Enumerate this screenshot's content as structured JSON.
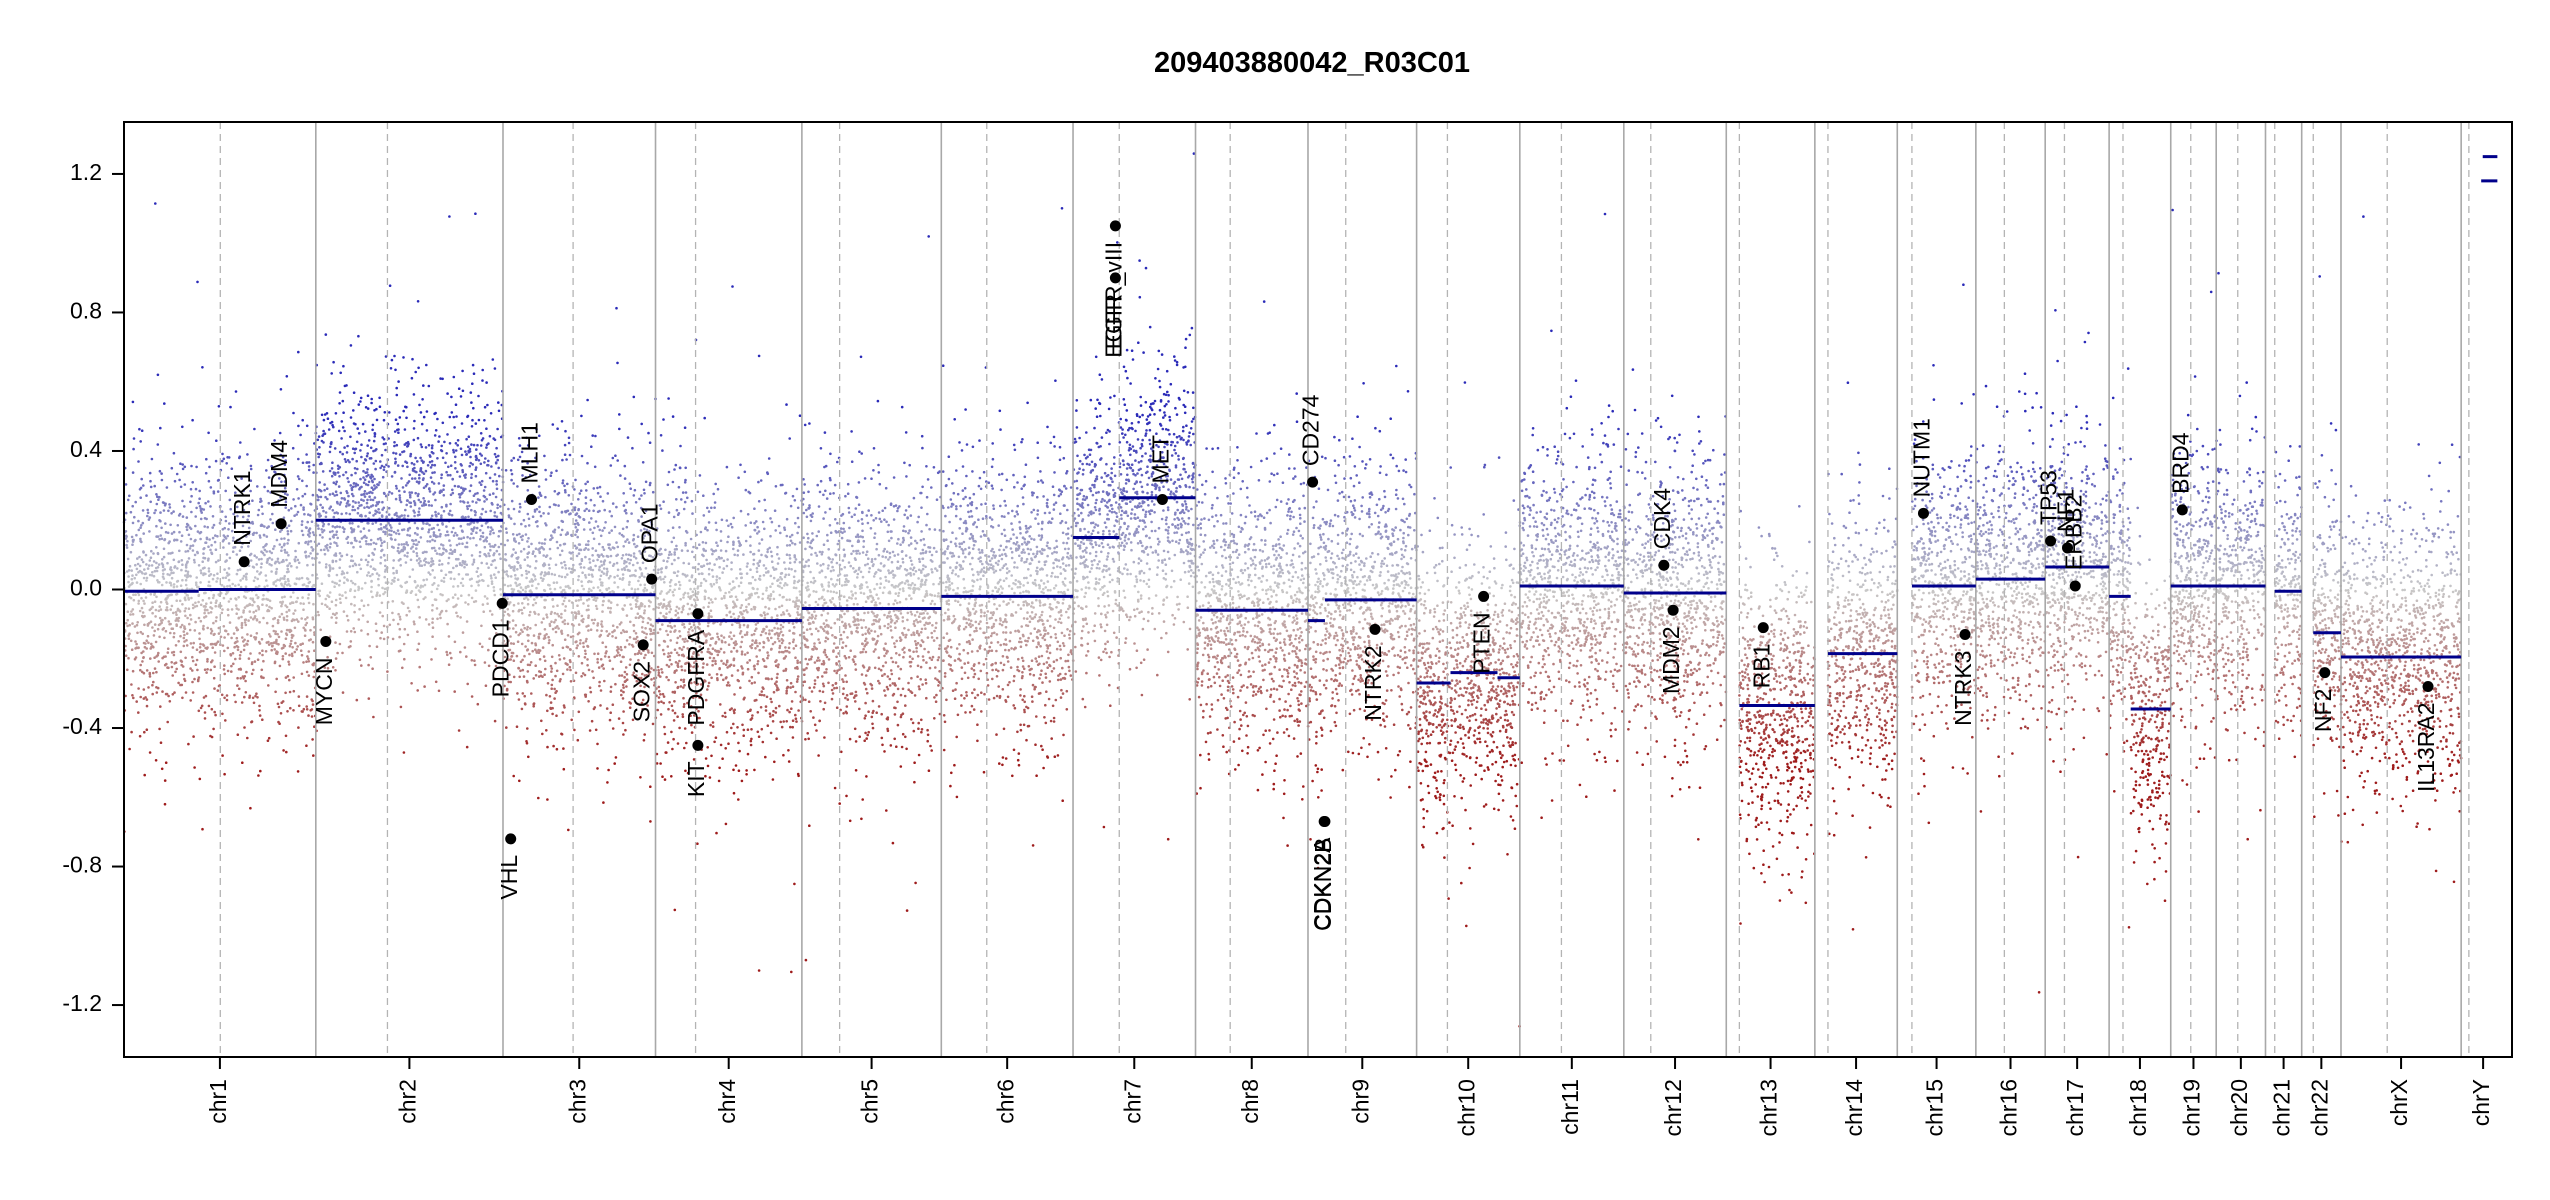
{
  "chart_data": {
    "type": "scatter",
    "title": "209403880042_R03C01",
    "xlabel": "",
    "ylabel": "",
    "ylim": [
      -1.35,
      1.35
    ],
    "y_ticks": [
      1.2,
      0.8,
      0.4,
      0.0,
      -0.4,
      -0.8,
      -1.2
    ],
    "y_tick_labels": [
      "1.2",
      "0.8",
      "0.4",
      "0.0",
      "-0.4",
      "-0.8",
      "-1.2"
    ],
    "x_range_mb": [
      0,
      3100
    ],
    "chromosomes": [
      {
        "name": "chr1",
        "start": 0,
        "end": 249,
        "centromere": 125
      },
      {
        "name": "chr2",
        "start": 249,
        "end": 492,
        "centromere": 342
      },
      {
        "name": "chr3",
        "start": 492,
        "end": 690,
        "centromere": 583
      },
      {
        "name": "chr4",
        "start": 690,
        "end": 880,
        "centromere": 742
      },
      {
        "name": "chr5",
        "start": 880,
        "end": 1061,
        "centromere": 929
      },
      {
        "name": "chr6",
        "start": 1061,
        "end": 1232,
        "centromere": 1120
      },
      {
        "name": "chr7",
        "start": 1232,
        "end": 1391,
        "centromere": 1292
      },
      {
        "name": "chr8",
        "start": 1391,
        "end": 1537,
        "centromere": 1436
      },
      {
        "name": "chr9",
        "start": 1537,
        "end": 1678,
        "centromere": 1586
      },
      {
        "name": "chr10",
        "start": 1678,
        "end": 1812,
        "centromere": 1718
      },
      {
        "name": "chr11",
        "start": 1812,
        "end": 1947,
        "centromere": 1866
      },
      {
        "name": "chr12",
        "start": 1947,
        "end": 2080,
        "centromere": 1982
      },
      {
        "name": "chr13",
        "start": 2080,
        "end": 2195,
        "centromere": 2097
      },
      {
        "name": "chr14",
        "start": 2195,
        "end": 2302,
        "centromere": 2212
      },
      {
        "name": "chr15",
        "start": 2302,
        "end": 2404,
        "centromere": 2321
      },
      {
        "name": "chr16",
        "start": 2404,
        "end": 2494,
        "centromere": 2441
      },
      {
        "name": "chr17",
        "start": 2494,
        "end": 2577,
        "centromere": 2519
      },
      {
        "name": "chr18",
        "start": 2577,
        "end": 2657,
        "centromere": 2595
      },
      {
        "name": "chr19",
        "start": 2657,
        "end": 2716,
        "centromere": 2683
      },
      {
        "name": "chr20",
        "start": 2716,
        "end": 2780,
        "centromere": 2744
      },
      {
        "name": "chr21",
        "start": 2780,
        "end": 2827,
        "centromere": 2792
      },
      {
        "name": "chr22",
        "start": 2827,
        "end": 2878,
        "centromere": 2842
      },
      {
        "name": "chrX",
        "start": 2878,
        "end": 3034,
        "centromere": 2938
      },
      {
        "name": "chrY",
        "start": 3034,
        "end": 3091,
        "centromere": 3044
      }
    ],
    "segments": [
      {
        "chr": "chr1",
        "start": 0,
        "end": 97,
        "value": -0.005
      },
      {
        "chr": "chr1",
        "start": 97,
        "end": 249,
        "value": 0.0
      },
      {
        "chr": "chr2",
        "start": 249,
        "end": 492,
        "value": 0.2
      },
      {
        "chr": "chr3",
        "start": 492,
        "end": 690,
        "value": -0.015
      },
      {
        "chr": "chr4",
        "start": 690,
        "end": 880,
        "value": -0.09
      },
      {
        "chr": "chr5",
        "start": 880,
        "end": 1061,
        "value": -0.055
      },
      {
        "chr": "chr6",
        "start": 1061,
        "end": 1232,
        "value": -0.02
      },
      {
        "chr": "chr7",
        "start": 1232,
        "end": 1292,
        "value": 0.15
      },
      {
        "chr": "chr7",
        "start": 1292,
        "end": 1391,
        "value": 0.265
      },
      {
        "chr": "chr8",
        "start": 1391,
        "end": 1537,
        "value": -0.06
      },
      {
        "chr": "chr9",
        "start": 1537,
        "end": 1559,
        "value": -0.09
      },
      {
        "chr": "chr9",
        "start": 1559,
        "end": 1678,
        "value": -0.03
      },
      {
        "chr": "chr10",
        "start": 1678,
        "end": 1722,
        "value": -0.27
      },
      {
        "chr": "chr10",
        "start": 1722,
        "end": 1783,
        "value": -0.24
      },
      {
        "chr": "chr10",
        "start": 1783,
        "end": 1812,
        "value": -0.255
      },
      {
        "chr": "chr11",
        "start": 1812,
        "end": 1947,
        "value": 0.01
      },
      {
        "chr": "chr12",
        "start": 1947,
        "end": 2080,
        "value": -0.01
      },
      {
        "chr": "chr13",
        "start": 2097,
        "end": 2195,
        "value": -0.335
      },
      {
        "chr": "chr14",
        "start": 2212,
        "end": 2302,
        "value": -0.185
      },
      {
        "chr": "chr15",
        "start": 2321,
        "end": 2404,
        "value": 0.01
      },
      {
        "chr": "chr16",
        "start": 2404,
        "end": 2494,
        "value": 0.03
      },
      {
        "chr": "chr17",
        "start": 2494,
        "end": 2577,
        "value": 0.065
      },
      {
        "chr": "chr18",
        "start": 2577,
        "end": 2605,
        "value": -0.02
      },
      {
        "chr": "chr18",
        "start": 2605,
        "end": 2657,
        "value": -0.345
      },
      {
        "chr": "chr19",
        "start": 2657,
        "end": 2780,
        "value": 0.01
      },
      {
        "chr": "chr21",
        "start": 2792,
        "end": 2827,
        "value": -0.005
      },
      {
        "chr": "chr22",
        "start": 2842,
        "end": 2878,
        "value": -0.125
      },
      {
        "chr": "chrX",
        "start": 2878,
        "end": 3034,
        "value": -0.195
      },
      {
        "chr": "chrY",
        "start": 3060,
        "end": 3081,
        "value": 1.18
      },
      {
        "chr": "chrY",
        "start": 3062,
        "end": 3081,
        "value": 1.25
      }
    ],
    "genes": [
      {
        "name": "NTRK1",
        "pos": 156,
        "value": 0.08,
        "label_side": "above"
      },
      {
        "name": "MDM4",
        "pos": 204,
        "value": 0.19,
        "label_side": "above"
      },
      {
        "name": "MYCN",
        "pos": 262,
        "value": -0.15,
        "label_side": "below"
      },
      {
        "name": "PDCD1",
        "pos": 491,
        "value": -0.04,
        "label_side": "below"
      },
      {
        "name": "VHL",
        "pos": 502,
        "value": -0.72,
        "label_side": "below"
      },
      {
        "name": "MLH1",
        "pos": 529,
        "value": 0.26,
        "label_side": "above"
      },
      {
        "name": "SOX2",
        "pos": 674,
        "value": -0.16,
        "label_side": "below"
      },
      {
        "name": "OPA1",
        "pos": 685,
        "value": 0.03,
        "label_side": "above"
      },
      {
        "name": "KIT",
        "pos": 745,
        "value": -0.45,
        "label_side": "below"
      },
      {
        "name": "PDGFRA",
        "pos": 745,
        "value": -0.07,
        "label_side": "below"
      },
      {
        "name": "EGFR",
        "pos": 1287,
        "value": 0.9,
        "label_side": "below"
      },
      {
        "name": "EGFR_vIII",
        "pos": 1287,
        "value": 1.05,
        "label_side": "below"
      },
      {
        "name": "MET",
        "pos": 1348,
        "value": 0.26,
        "label_side": "above"
      },
      {
        "name": "CD274",
        "pos": 1543,
        "value": 0.31,
        "label_side": "above"
      },
      {
        "name": "CDKN2A",
        "pos": 1558,
        "value": -0.67,
        "label_side": "below"
      },
      {
        "name": "CDKN2B",
        "pos": 1559,
        "value": -0.67,
        "label_side": "below"
      },
      {
        "name": "NTRK2",
        "pos": 1624,
        "value": -0.115,
        "label_side": "below"
      },
      {
        "name": "PTEN",
        "pos": 1765,
        "value": -0.02,
        "label_side": "below"
      },
      {
        "name": "CDK4",
        "pos": 1999,
        "value": 0.07,
        "label_side": "above"
      },
      {
        "name": "MDM2",
        "pos": 2011,
        "value": -0.06,
        "label_side": "below"
      },
      {
        "name": "RB1",
        "pos": 2128,
        "value": -0.11,
        "label_side": "below"
      },
      {
        "name": "NUTM1",
        "pos": 2336,
        "value": 0.22,
        "label_side": "above"
      },
      {
        "name": "NTRK3",
        "pos": 2390,
        "value": -0.13,
        "label_side": "below"
      },
      {
        "name": "TP53",
        "pos": 2501,
        "value": 0.14,
        "label_side": "above"
      },
      {
        "name": "NF1",
        "pos": 2523,
        "value": 0.12,
        "label_side": "above"
      },
      {
        "name": "ERBB2",
        "pos": 2533,
        "value": 0.01,
        "label_side": "above"
      },
      {
        "name": "BRD4",
        "pos": 2672,
        "value": 0.23,
        "label_side": "above"
      },
      {
        "name": "NF2",
        "pos": 2857,
        "value": -0.24,
        "label_side": "below"
      },
      {
        "name": "IL13RA2",
        "pos": 2991,
        "value": -0.28,
        "label_side": "below"
      }
    ],
    "grid": false,
    "legend": "none"
  },
  "colors": {
    "segment": "#00008b",
    "gain_point": "#2a2ab8",
    "loss_point": "#9e1b1b",
    "neutral_point": "#c8c8c8",
    "chr_border": "#a8a8a8",
    "centromere": "#b4b4b4",
    "gene_marker": "#000000"
  }
}
